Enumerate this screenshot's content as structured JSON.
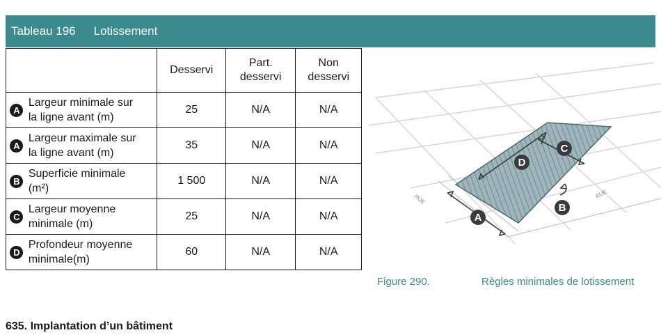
{
  "table": {
    "number": "Tableau 196",
    "name": "Lotissement",
    "headers": [
      "Desservi",
      "Part. desservi",
      "Non desservi"
    ],
    "header_lines": [
      [
        "Desservi"
      ],
      [
        "Part.",
        "desservi"
      ],
      [
        "Non",
        "desservi"
      ]
    ],
    "rows": [
      {
        "badge": "A",
        "label_lines": [
          "Largeur minimale sur",
          "la ligne avant (m)"
        ],
        "desservi": "25",
        "part": "N/A",
        "non": "N/A"
      },
      {
        "badge": "A",
        "label_lines": [
          "Largeur maximale sur",
          "la ligne avant (m)"
        ],
        "desservi": "35",
        "part": "N/A",
        "non": "N/A"
      },
      {
        "badge": "B",
        "label_lines": [
          "Superficie minimale",
          "(m²)"
        ],
        "desservi": "1 500",
        "part": "N/A",
        "non": "N/A"
      },
      {
        "badge": "C",
        "label_lines": [
          "Largeur moyenne",
          "minimale (m)"
        ],
        "desservi": "25",
        "part": "N/A",
        "non": "N/A"
      },
      {
        "badge": "D",
        "label_lines": [
          "Profondeur moyenne",
          "minimale(m)"
        ],
        "desservi": "60",
        "part": "N/A",
        "non": "N/A"
      }
    ]
  },
  "figure": {
    "number": "Figure 290.",
    "caption": "Règles minimales de lotissement",
    "street_labels": [
      "RUE",
      "RUE"
    ],
    "badges": [
      "A",
      "B",
      "C",
      "D"
    ]
  },
  "section": {
    "title": "635. Implantation d’un bâtiment"
  },
  "colors": {
    "accent": "#3a8a8e",
    "badge": "#1a1a1a"
  }
}
